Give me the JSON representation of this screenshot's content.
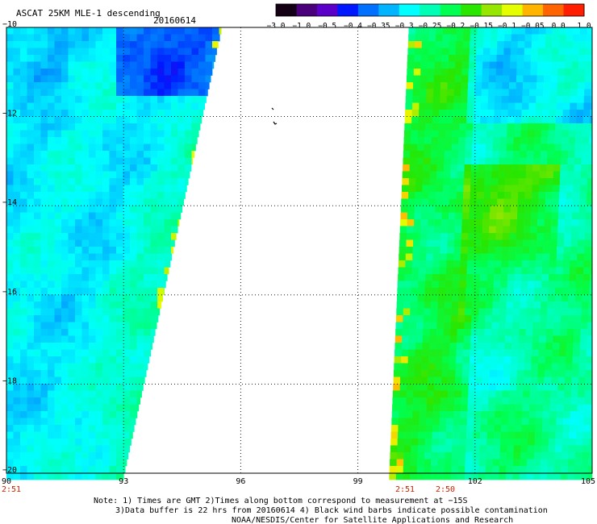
{
  "header": {
    "title": "ASCAT 25KM MLE-1 descending",
    "date": "20160614"
  },
  "colorbar": {
    "colors": [
      "#140014",
      "#4a007a",
      "#5a00c8",
      "#0018ff",
      "#0070ff",
      "#00b4ff",
      "#00ffff",
      "#00ffb4",
      "#00ff50",
      "#28e600",
      "#96e600",
      "#e6ff00",
      "#ffb400",
      "#ff6400",
      "#ff1e00"
    ],
    "labels": [
      "-3.0",
      "-1.0",
      "-0.5",
      "-0.4",
      "-0.35",
      "-0.3",
      "-0.25",
      "-0.2",
      "-0.15",
      "-0.1",
      "-0.05",
      "0.0",
      "1.0"
    ]
  },
  "map": {
    "lon_range": [
      90,
      105
    ],
    "lat_range": [
      -20,
      -10
    ],
    "x_ticks": [
      "90",
      "93",
      "96",
      "99",
      "102",
      "105"
    ],
    "y_ticks": [
      "-10",
      "-12",
      "-14",
      "-16",
      "-18",
      "-20"
    ],
    "grid": "dotted",
    "swath_time_labels": [
      "2:51",
      "2:51",
      "2:50"
    ],
    "swath_time_color": "#cc2200",
    "swaths": [
      {
        "name": "west-swath",
        "lon_west": 90,
        "lon_east_at_north": 95.5,
        "lon_east_at_south": 93.0
      },
      {
        "name": "east-swath",
        "lon_west_at_north": 100.3,
        "lon_west_at_south": 99.8,
        "lon_east": 105
      }
    ]
  },
  "notes": {
    "line1": "Note: 1) Times are GMT 2)Times along bottom correspond to measurement at −15S",
    "line2": "3)Data buffer is 22 hrs from 20160614 4) Black wind barbs indicate possible contamination",
    "line3": "NOAA/NESDIS/Center for Satellite Applications and Research"
  }
}
